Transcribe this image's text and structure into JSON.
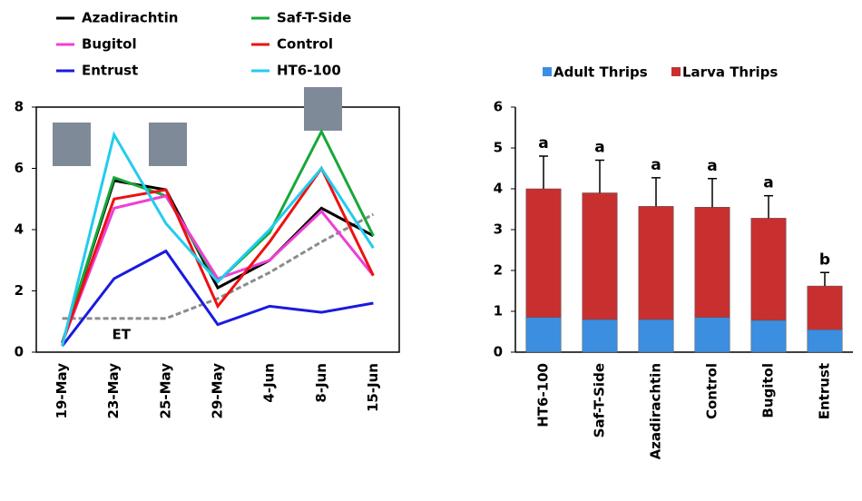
{
  "chart_data": [
    {
      "type": "line",
      "categories": [
        "19-May",
        "23-May",
        "25-May",
        "29-May",
        "4-Jun",
        "8-Jun",
        "15-Jun"
      ],
      "series": [
        {
          "name": "Azadirachtin",
          "color": "#000000",
          "values": [
            0.3,
            5.6,
            5.3,
            2.1,
            3.0,
            4.7,
            3.8
          ]
        },
        {
          "name": "Saf-T-Side",
          "color": "#16a83a",
          "values": [
            0.3,
            5.7,
            5.1,
            2.3,
            3.9,
            7.2,
            3.8
          ]
        },
        {
          "name": "Bugitol",
          "color": "#ee3fd6",
          "values": [
            0.3,
            4.7,
            5.1,
            2.4,
            3.0,
            4.6,
            2.5
          ]
        },
        {
          "name": "Control",
          "color": "#ee1111",
          "values": [
            0.3,
            5.0,
            5.3,
            1.5,
            3.6,
            6.0,
            2.5
          ]
        },
        {
          "name": "Entrust",
          "color": "#1a1adf",
          "values": [
            0.2,
            2.4,
            3.3,
            0.9,
            1.5,
            1.3,
            1.6
          ]
        },
        {
          "name": "HT6-100",
          "color": "#22ccee",
          "values": [
            0.2,
            7.1,
            4.2,
            2.3,
            4.0,
            6.0,
            3.4
          ]
        }
      ],
      "reference_line": {
        "label": "ET",
        "color": "#8c8c8c",
        "values": [
          1.1,
          1.1,
          1.1,
          1.75,
          2.6,
          3.6,
          4.5
        ]
      },
      "ylim": [
        0,
        8
      ],
      "yticks": [
        0,
        2,
        4,
        6,
        8
      ]
    },
    {
      "type": "bar",
      "stacked": true,
      "categories": [
        "HT6-100",
        "Saf-T-Side",
        "Azadirachtin",
        "Control",
        "Bugitol",
        "Entrust"
      ],
      "series": [
        {
          "name": "Adult Thrips",
          "color": "#3b8ee0",
          "values": [
            0.85,
            0.8,
            0.8,
            0.85,
            0.78,
            0.55
          ],
          "errors": [
            0.15,
            0.1,
            0.1,
            0.15,
            0.1,
            0.05
          ]
        },
        {
          "name": "Larva Thrips",
          "color": "#c83030",
          "values": [
            3.15,
            3.1,
            2.77,
            2.7,
            2.5,
            1.07
          ],
          "errors": [
            0.8,
            0.8,
            0.7,
            0.7,
            0.55,
            0.33
          ]
        }
      ],
      "letters": [
        "a",
        "a",
        "a",
        "a",
        "a",
        "b"
      ],
      "ylim": [
        0,
        6
      ],
      "yticks": [
        0,
        1,
        2,
        3,
        4,
        5,
        6
      ]
    }
  ]
}
